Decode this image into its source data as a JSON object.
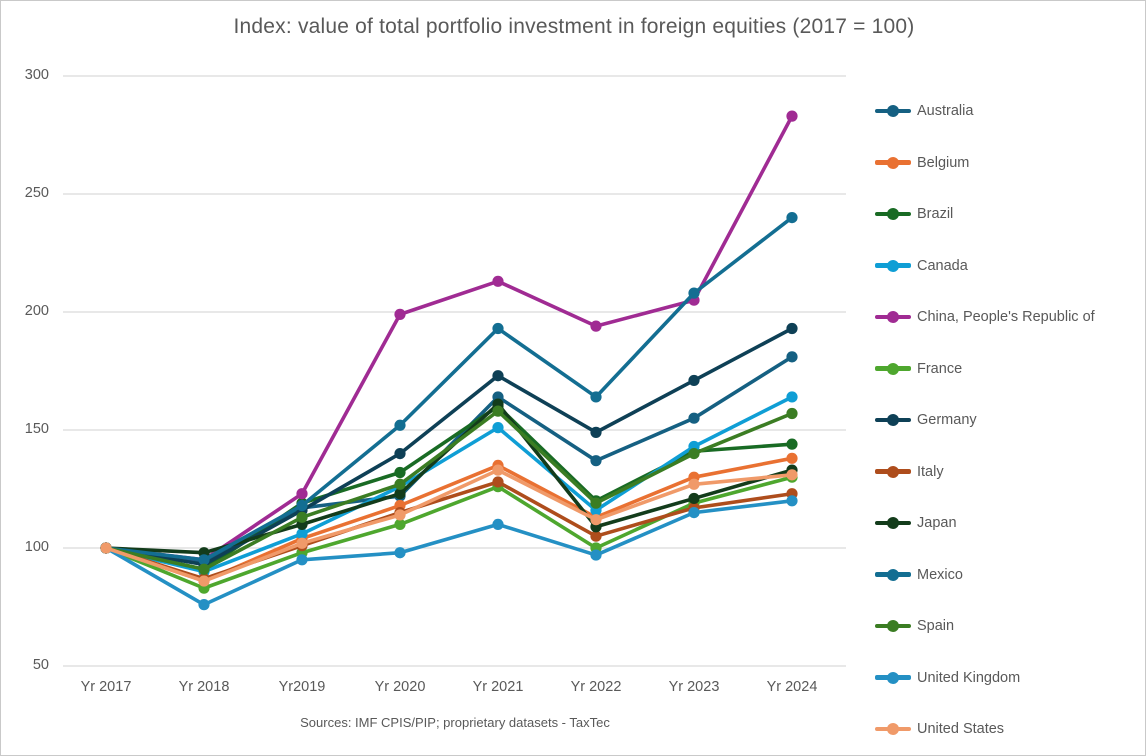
{
  "chart_data": {
    "type": "line",
    "title": "Index: value of total portfolio investment in foreign equities (2017 = 100)",
    "source_note": "Sources: IMF CPIS/PIP; proprietary datasets - TaxTec",
    "categories": [
      "Yr 2017",
      "Yr 2018",
      "Yr2019",
      "Yr 2020",
      "Yr 2021",
      "Yr 2022",
      "Yr 2023",
      "Yr 2024"
    ],
    "xlabel": "",
    "ylabel": "",
    "ylim": [
      50,
      300
    ],
    "yticks": [
      50,
      100,
      150,
      200,
      250,
      300
    ],
    "grid": true,
    "legend_position": "right",
    "marker": "circle",
    "gridline_color": "#d9d9d9",
    "text_color": "#595959",
    "series": [
      {
        "name": "Australia",
        "color": "#156082",
        "values": [
          100,
          94,
          117,
          122,
          164,
          137,
          155,
          181
        ]
      },
      {
        "name": "Belgium",
        "color": "#E97132",
        "values": [
          100,
          86,
          104,
          118,
          135,
          113,
          130,
          138
        ]
      },
      {
        "name": "Brazil",
        "color": "#196B24",
        "values": [
          100,
          91,
          119,
          132,
          160,
          120,
          141,
          144
        ]
      },
      {
        "name": "Canada",
        "color": "#0F9ED5",
        "values": [
          100,
          90,
          106,
          126,
          151,
          116,
          143,
          164
        ]
      },
      {
        "name": "China, People's Republic of",
        "color": "#A02B93",
        "values": [
          100,
          95,
          123,
          199,
          213,
          194,
          205,
          283
        ]
      },
      {
        "name": "France",
        "color": "#4EA72E",
        "values": [
          100,
          83,
          98,
          110,
          126,
          100,
          119,
          130
        ]
      },
      {
        "name": "Germany",
        "color": "#0E4056",
        "values": [
          100,
          93,
          116,
          140,
          173,
          149,
          171,
          193
        ]
      },
      {
        "name": "Italy",
        "color": "#AE4D1C",
        "values": [
          100,
          87,
          101,
          115,
          128,
          105,
          117,
          123
        ]
      },
      {
        "name": "Japan",
        "color": "#133C1B",
        "values": [
          100,
          98,
          110,
          123,
          161,
          109,
          121,
          133
        ]
      },
      {
        "name": "Mexico",
        "color": "#136E92",
        "values": [
          100,
          95,
          118,
          152,
          193,
          164,
          208,
          240
        ]
      },
      {
        "name": "Spain",
        "color": "#3B7D23",
        "values": [
          100,
          91,
          113,
          127,
          158,
          119,
          140,
          157
        ]
      },
      {
        "name": "United Kingdom",
        "color": "#2490C4",
        "values": [
          100,
          76,
          95,
          98,
          110,
          97,
          115,
          120
        ]
      },
      {
        "name": "United States",
        "color": "#F09A69",
        "values": [
          100,
          86,
          102,
          114,
          133,
          112,
          127,
          131
        ]
      }
    ]
  }
}
